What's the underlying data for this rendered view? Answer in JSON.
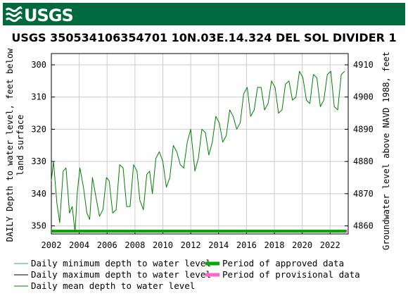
{
  "header": {
    "logo_text": "USGS",
    "brand_color": "#00693e"
  },
  "chart_data": {
    "type": "line",
    "title": "USGS 350534106354701 10N.03E.14.324 DEL SOL DIVIDER 1",
    "ylabel_left_line1": "DAILY Depth to water level, feet below",
    "ylabel_left_line2": "land surface",
    "ylabel_right": "Groundwater level above NAVD 1988, feet",
    "x_tick_labels": [
      "2002",
      "2004",
      "2006",
      "2008",
      "2010",
      "2012",
      "2014",
      "2016",
      "2018",
      "2020",
      "2022"
    ],
    "y_left_tick_labels": [
      "300",
      "310",
      "320",
      "330",
      "340",
      "350"
    ],
    "y_right_tick_labels": [
      "4910",
      "4900",
      "4890",
      "4880",
      "4870",
      "4860"
    ],
    "xlim": [
      2002.0,
      2023.3
    ],
    "ylim_left": [
      296.5,
      352.5
    ],
    "ylim_right": [
      4913.5,
      4857.5
    ],
    "y_inverted": true,
    "grid": true,
    "series": [
      {
        "name": "Daily mean depth to water level",
        "color": "#008000",
        "x": [
          2002.0,
          2002.15,
          2002.4,
          2002.6,
          2002.85,
          2003.05,
          2003.3,
          2003.5,
          2003.7,
          2003.85,
          2004.05,
          2004.3,
          2004.55,
          2004.75,
          2004.95,
          2005.2,
          2005.45,
          2005.7,
          2005.95,
          2006.15,
          2006.4,
          2006.65,
          2006.9,
          2007.15,
          2007.4,
          2007.65,
          2007.9,
          2008.15,
          2008.35,
          2008.6,
          2008.85,
          2009.05,
          2009.25,
          2009.5,
          2009.75,
          2010.0,
          2010.25,
          2010.5,
          2010.75,
          2011.0,
          2011.25,
          2011.5,
          2011.75,
          2012.0,
          2012.3,
          2012.55,
          2012.8,
          2013.05,
          2013.3,
          2013.55,
          2013.8,
          2014.05,
          2014.3,
          2014.55,
          2014.8,
          2015.05,
          2015.3,
          2015.55,
          2015.8,
          2016.05,
          2016.3,
          2016.55,
          2016.8,
          2017.05,
          2017.3,
          2017.55,
          2017.8,
          2018.05,
          2018.3,
          2018.55,
          2018.8,
          2019.05,
          2019.3,
          2019.55,
          2019.8,
          2020.05,
          2020.3,
          2020.55,
          2020.8,
          2021.05,
          2021.3,
          2021.55,
          2021.8,
          2022.05,
          2022.3,
          2022.55,
          2022.8,
          2023.05
        ],
        "y": [
          336,
          330,
          343,
          349,
          333,
          332,
          346,
          344,
          352,
          340,
          332,
          338,
          346,
          348,
          335,
          341,
          347,
          345,
          335,
          336,
          346,
          345,
          331,
          332,
          344,
          344,
          331,
          333,
          342,
          345,
          334,
          333,
          340,
          329,
          327,
          330,
          338,
          335,
          325,
          327,
          331,
          332,
          324,
          320,
          333,
          329,
          320,
          321,
          328,
          324,
          316,
          318,
          324,
          322,
          314,
          316,
          320,
          318,
          309,
          307,
          316,
          314,
          307,
          307,
          314,
          312,
          305,
          307,
          315,
          314,
          306,
          305,
          311,
          310,
          302,
          304,
          311,
          312,
          303,
          304,
          313,
          311,
          303,
          302,
          313,
          314,
          303,
          302
        ]
      },
      {
        "name": "Daily minimum depth to water level",
        "color": "#3399cc"
      },
      {
        "name": "Daily maximum depth to water level",
        "color": "#000000"
      },
      {
        "name": "Period of approved data",
        "color": "#00aa00"
      },
      {
        "name": "Period of provisional data",
        "color": "#ff66cc"
      }
    ],
    "approved_period": [
      2002.0,
      2023.15
    ],
    "provisional_period": [
      2023.15,
      2023.3
    ],
    "legend": {
      "placement": "bottom",
      "items": [
        {
          "label": "Daily minimum depth to water level",
          "color": "#3399cc",
          "style": "thin"
        },
        {
          "label": "Period of approved data",
          "color": "#00aa00",
          "style": "thick"
        },
        {
          "label": "Daily maximum depth to water level",
          "color": "#000000",
          "style": "thin"
        },
        {
          "label": "Period of provisional data",
          "color": "#ff66cc",
          "style": "thick"
        },
        {
          "label": "Daily mean depth to water level",
          "color": "#008000",
          "style": "thin"
        }
      ]
    }
  }
}
